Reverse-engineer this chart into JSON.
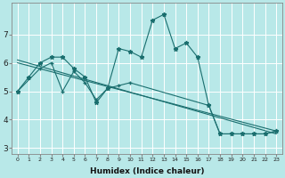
{
  "xlabel": "Humidex (Indice chaleur)",
  "background_color": "#b8e8e8",
  "grid_color": "#ffffff",
  "line_color": "#1a6e6e",
  "xlim": [
    -0.5,
    23.5
  ],
  "ylim": [
    2.8,
    8.1
  ],
  "yticks": [
    3,
    4,
    5,
    6,
    7
  ],
  "xticks": [
    0,
    1,
    2,
    3,
    4,
    5,
    6,
    7,
    8,
    9,
    10,
    11,
    12,
    13,
    14,
    15,
    16,
    17,
    18,
    19,
    20,
    21,
    22,
    23
  ],
  "series1_x": [
    0,
    1,
    2,
    3,
    4,
    5,
    6,
    7,
    8,
    9,
    10,
    11,
    12,
    13,
    14,
    15,
    16,
    17,
    18,
    19,
    20,
    21,
    22,
    23
  ],
  "series1_y": [
    5.0,
    5.5,
    6.0,
    6.2,
    6.2,
    5.8,
    5.5,
    4.6,
    5.1,
    6.5,
    6.4,
    6.2,
    7.5,
    7.7,
    6.5,
    6.7,
    6.2,
    4.5,
    3.5,
    3.5,
    3.5,
    3.5,
    3.5,
    3.6
  ],
  "series2_x": [
    0,
    2,
    3,
    4,
    5,
    6,
    7,
    8,
    9,
    10,
    17,
    18,
    19,
    20,
    21,
    22,
    23
  ],
  "series2_y": [
    5.0,
    5.8,
    6.0,
    5.0,
    5.7,
    5.3,
    4.7,
    5.1,
    5.2,
    5.3,
    4.5,
    3.5,
    3.5,
    3.5,
    3.5,
    3.5,
    3.6
  ],
  "line3_x": [
    0,
    23
  ],
  "line3_y": [
    6.1,
    3.5
  ],
  "line4_x": [
    0,
    23
  ],
  "line4_y": [
    6.0,
    3.6
  ]
}
